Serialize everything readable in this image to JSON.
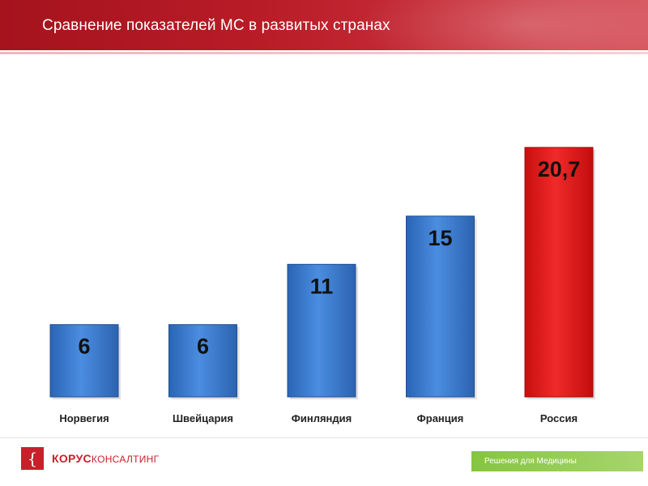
{
  "header": {
    "title": "Сравнение показателей МС в развитых странах"
  },
  "chart_data": {
    "type": "bar",
    "categories": [
      "Норвегия",
      "Швейцария",
      "Финляндия",
      "Франция",
      "Россия"
    ],
    "values": [
      6,
      6,
      11,
      15,
      20.7
    ],
    "value_labels": [
      "6",
      "6",
      "11",
      "15",
      "20,7"
    ],
    "colors": [
      "#3d7fd4",
      "#3d7fd4",
      "#3d7fd4",
      "#3d7fd4",
      "#e01b1b"
    ],
    "highlight": "Россия",
    "ylim": [
      0,
      20.7
    ],
    "grid": false,
    "legend": "none"
  },
  "footer": {
    "logo_bold": "КОРУС",
    "logo_rest": "КОНСАЛТИНГ",
    "tagline": "Решения для Медицины"
  }
}
